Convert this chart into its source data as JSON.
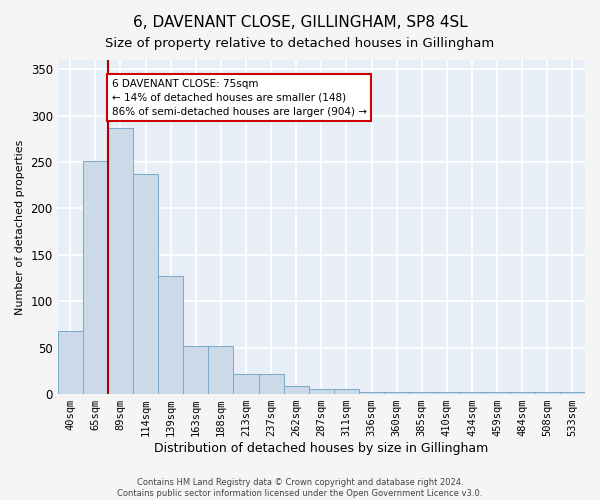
{
  "title1": "6, DAVENANT CLOSE, GILLINGHAM, SP8 4SL",
  "title2": "Size of property relative to detached houses in Gillingham",
  "xlabel": "Distribution of detached houses by size in Gillingham",
  "ylabel": "Number of detached properties",
  "bar_labels": [
    "40sqm",
    "65sqm",
    "89sqm",
    "114sqm",
    "139sqm",
    "163sqm",
    "188sqm",
    "213sqm",
    "237sqm",
    "262sqm",
    "287sqm",
    "311sqm",
    "336sqm",
    "360sqm",
    "385sqm",
    "410sqm",
    "434sqm",
    "459sqm",
    "484sqm",
    "508sqm",
    "533sqm"
  ],
  "bar_heights": [
    68,
    251,
    287,
    237,
    127,
    52,
    52,
    22,
    22,
    9,
    5,
    5,
    2,
    2,
    2,
    2,
    2,
    2,
    2,
    2,
    2
  ],
  "bar_color": "#ccd9e8",
  "bar_edge_color": "#7aaac8",
  "bar_edge_width": 0.7,
  "red_line_x": 1.5,
  "annotation_title": "6 DAVENANT CLOSE: 75sqm",
  "annotation_line1": "← 14% of detached houses are smaller (148)",
  "annotation_line2": "86% of semi-detached houses are larger (904) →",
  "annotation_box_facecolor": "#ffffff",
  "annotation_box_edgecolor": "#cc0000",
  "red_line_color": "#aa0000",
  "footer1": "Contains HM Land Registry data © Crown copyright and database right 2024.",
  "footer2": "Contains public sector information licensed under the Open Government Licence v3.0.",
  "ylim": [
    0,
    360
  ],
  "yticks": [
    0,
    50,
    100,
    150,
    200,
    250,
    300,
    350
  ],
  "ax_bg_color": "#e8eef5",
  "fig_bg_color": "#f5f5f5",
  "grid_color": "#ffffff",
  "title1_fontsize": 11,
  "title2_fontsize": 9.5,
  "tick_fontsize": 7.5,
  "xlabel_fontsize": 9,
  "ylabel_fontsize": 8,
  "annot_fontsize": 7.5,
  "footer_fontsize": 6
}
